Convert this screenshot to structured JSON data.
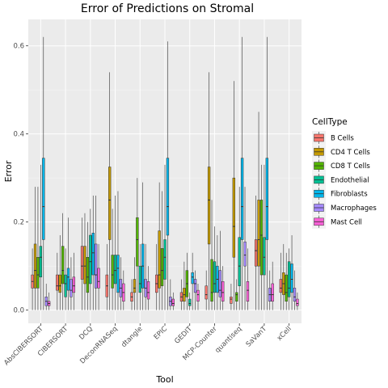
{
  "chart_data": {
    "type": "boxplot",
    "title": "Error of Predictions on Stromal",
    "xlabel": "Tool",
    "ylabel": "Error",
    "ylim": [
      -0.03,
      0.66
    ],
    "yticks": [
      0.0,
      0.2,
      0.4,
      0.6
    ],
    "ytick_labels": [
      "0.0",
      "0.2",
      "0.4",
      "0.6"
    ],
    "grid": true,
    "legend_title": "CellType",
    "legend_position": "right",
    "categories": [
      "AbsCIBERSORT",
      "CIBERSORT",
      "DCQ",
      "DeconRNASeq",
      "dtangle",
      "EPIC",
      "GEDIT",
      "MCP-Counter",
      "quantiseq",
      "SaVanT",
      "xCell"
    ],
    "series": [
      {
        "name": "B Cells",
        "color": "#F8766D",
        "boxes": [
          [
            0.0,
            0.05,
            0.065,
            0.08,
            0.14
          ],
          [
            0.0,
            0.045,
            0.055,
            0.08,
            0.13
          ],
          [
            0.0,
            0.07,
            0.1,
            0.145,
            0.21
          ],
          [
            0.0,
            0.03,
            0.055,
            0.08,
            0.15
          ],
          [
            0.0,
            0.02,
            0.03,
            0.04,
            0.07
          ],
          [
            0.0,
            0.04,
            0.06,
            0.08,
            0.15
          ],
          [
            0.0,
            0.02,
            0.03,
            0.04,
            0.07
          ],
          [
            0.0,
            0.025,
            0.035,
            0.055,
            0.09
          ],
          [
            0.0,
            0.015,
            0.025,
            0.03,
            0.06
          ],
          [
            0.0,
            0.1,
            0.135,
            0.16,
            0.26
          ],
          [
            0.0,
            0.04,
            0.05,
            0.07,
            0.13
          ]
        ]
      },
      {
        "name": "CD4 T Cells",
        "color": "#C49A00",
        "boxes": [
          [
            0.0,
            0.05,
            0.09,
            0.15,
            0.28
          ],
          [
            0.0,
            0.04,
            0.055,
            0.08,
            0.17
          ],
          [
            0.0,
            0.06,
            0.1,
            0.145,
            0.22
          ],
          [
            0.0,
            0.16,
            0.25,
            0.325,
            0.54
          ],
          [
            0.0,
            0.04,
            0.05,
            0.07,
            0.12
          ],
          [
            0.0,
            0.05,
            0.08,
            0.18,
            0.29
          ],
          [
            0.0,
            0.02,
            0.035,
            0.05,
            0.11
          ],
          [
            0.0,
            0.15,
            0.25,
            0.325,
            0.54
          ],
          [
            0.0,
            0.12,
            0.19,
            0.3,
            0.52
          ],
          [
            0.0,
            0.1,
            0.16,
            0.25,
            0.45
          ],
          [
            0.0,
            0.035,
            0.06,
            0.085,
            0.15
          ]
        ]
      },
      {
        "name": "CD8 T Cells",
        "color": "#53B400",
        "boxes": [
          [
            0.0,
            0.05,
            0.08,
            0.12,
            0.28
          ],
          [
            0.0,
            0.06,
            0.09,
            0.145,
            0.22
          ],
          [
            0.0,
            0.04,
            0.075,
            0.12,
            0.2
          ],
          [
            0.0,
            0.05,
            0.08,
            0.125,
            0.23
          ],
          [
            0.0,
            0.1,
            0.16,
            0.21,
            0.3
          ],
          [
            0.0,
            0.055,
            0.09,
            0.14,
            0.27
          ],
          [
            0.0,
            0.03,
            0.06,
            0.09,
            0.13
          ],
          [
            0.0,
            0.02,
            0.04,
            0.115,
            0.25
          ],
          [
            0.0,
            0.02,
            0.035,
            0.04,
            0.07
          ],
          [
            0.0,
            0.08,
            0.17,
            0.25,
            0.33
          ],
          [
            0.0,
            0.02,
            0.04,
            0.08,
            0.13
          ]
        ]
      },
      {
        "name": "Endothelial",
        "color": "#00C094",
        "boxes": [
          [
            0.0,
            0.075,
            0.12,
            0.145,
            0.33
          ],
          [
            0.0,
            0.03,
            0.06,
            0.08,
            0.14
          ],
          [
            0.0,
            0.06,
            0.11,
            0.17,
            0.23
          ],
          [
            0.0,
            0.06,
            0.09,
            0.125,
            0.26
          ],
          [
            0.0,
            0.04,
            0.06,
            0.1,
            0.15
          ],
          [
            0.0,
            0.07,
            0.12,
            0.16,
            0.33
          ],
          [
            0.0,
            0.01,
            0.015,
            0.025,
            0.04
          ],
          [
            0.0,
            0.04,
            0.06,
            0.11,
            0.19
          ],
          [
            0.0,
            0.055,
            0.1,
            0.165,
            0.28
          ],
          [
            0.0,
            0.08,
            0.12,
            0.165,
            0.33
          ],
          [
            0.0,
            0.03,
            0.05,
            0.11,
            0.14
          ]
        ]
      },
      {
        "name": "Fibroblasts",
        "color": "#00B6EB",
        "boxes": [
          [
            0.0,
            0.16,
            0.235,
            0.345,
            0.62
          ],
          [
            0.0,
            0.045,
            0.075,
            0.095,
            0.21
          ],
          [
            0.0,
            0.08,
            0.13,
            0.175,
            0.26
          ],
          [
            0.0,
            0.04,
            0.095,
            0.125,
            0.27
          ],
          [
            0.0,
            0.05,
            0.1,
            0.15,
            0.29
          ],
          [
            0.0,
            0.17,
            0.235,
            0.345,
            0.61
          ],
          [
            0.0,
            0.06,
            0.075,
            0.085,
            0.13
          ],
          [
            0.0,
            0.04,
            0.07,
            0.1,
            0.17
          ],
          [
            0.0,
            0.16,
            0.235,
            0.345,
            0.62
          ],
          [
            0.0,
            0.16,
            0.235,
            0.345,
            0.62
          ],
          [
            0.0,
            0.04,
            0.07,
            0.105,
            0.17
          ]
        ]
      },
      {
        "name": "Macrophages",
        "color": "#A58AFF",
        "boxes": [
          [
            0.0,
            0.01,
            0.02,
            0.03,
            0.06
          ],
          [
            0.0,
            0.03,
            0.045,
            0.07,
            0.12
          ],
          [
            0.0,
            0.05,
            0.08,
            0.15,
            0.26
          ],
          [
            0.0,
            0.03,
            0.05,
            0.07,
            0.12
          ],
          [
            0.0,
            0.03,
            0.05,
            0.07,
            0.15
          ],
          [
            0.0,
            0.01,
            0.02,
            0.03,
            0.07
          ],
          [
            0.0,
            0.04,
            0.06,
            0.07,
            0.09
          ],
          [
            0.0,
            0.03,
            0.045,
            0.09,
            0.18
          ],
          [
            0.0,
            0.1,
            0.125,
            0.155,
            0.28
          ],
          [
            0.0,
            0.02,
            0.035,
            0.05,
            0.09
          ],
          [
            0.0,
            0.02,
            0.03,
            0.05,
            0.09
          ]
        ]
      },
      {
        "name": "Mast Cell",
        "color": "#FB61D7",
        "boxes": [
          [
            0.0,
            0.01,
            0.015,
            0.02,
            0.04
          ],
          [
            0.0,
            0.04,
            0.055,
            0.075,
            0.13
          ],
          [
            0.0,
            0.05,
            0.065,
            0.095,
            0.15
          ],
          [
            0.0,
            0.02,
            0.04,
            0.06,
            0.09
          ],
          [
            0.0,
            0.025,
            0.04,
            0.065,
            0.1
          ],
          [
            0.0,
            0.01,
            0.015,
            0.025,
            0.04
          ],
          [
            0.0,
            0.02,
            0.035,
            0.045,
            0.06
          ],
          [
            0.0,
            0.02,
            0.04,
            0.065,
            0.1
          ],
          [
            0.0,
            0.02,
            0.045,
            0.065,
            0.14
          ],
          [
            0.0,
            0.02,
            0.035,
            0.06,
            0.11
          ],
          [
            0.0,
            0.01,
            0.015,
            0.025,
            0.04
          ]
        ]
      }
    ]
  }
}
